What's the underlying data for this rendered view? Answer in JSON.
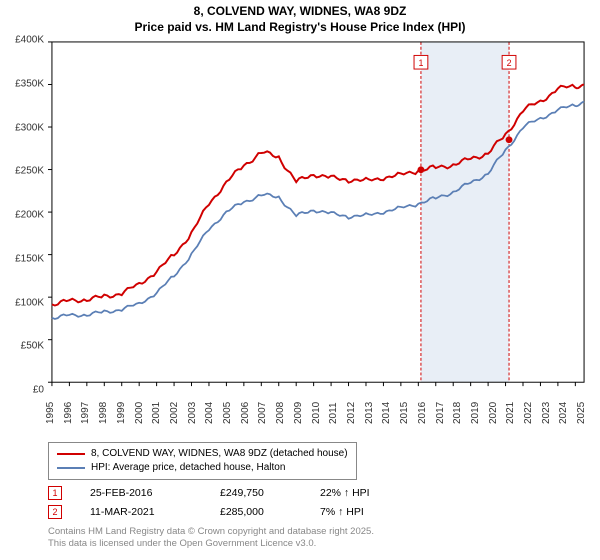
{
  "title_line1": "8, COLVEND WAY, WIDNES, WA8 9DZ",
  "title_line2": "Price paid vs. HM Land Registry's House Price Index (HPI)",
  "chart": {
    "type": "line",
    "background_color": "#ffffff",
    "border_color": "#000000",
    "xlim": [
      1995,
      2025.5
    ],
    "ylim": [
      0,
      400000
    ],
    "ytick_step": 50000,
    "yticks": [
      "£0",
      "£50K",
      "£100K",
      "£150K",
      "£200K",
      "£250K",
      "£300K",
      "£350K",
      "£400K"
    ],
    "xticks": [
      1995,
      1996,
      1997,
      1998,
      1999,
      2000,
      2001,
      2002,
      2003,
      2004,
      2005,
      2006,
      2007,
      2008,
      2009,
      2010,
      2011,
      2012,
      2013,
      2014,
      2015,
      2016,
      2017,
      2018,
      2019,
      2020,
      2021,
      2022,
      2023,
      2024,
      2025
    ],
    "highlight_band": {
      "from": 2016.15,
      "to": 2021.2,
      "fill": "#e8eef6",
      "edge": "#d00000",
      "edge_dash": "3,2"
    },
    "series": [
      {
        "name": "price_paid",
        "color": "#d00000",
        "line_width": 2,
        "x": [
          1995,
          1996,
          1997,
          1998,
          1999,
          2000,
          2001,
          2002,
          2003,
          2004,
          2005,
          2006,
          2007,
          2008,
          2009,
          2010,
          2011,
          2012,
          2013,
          2014,
          2015,
          2016,
          2017,
          2018,
          2019,
          2020,
          2021,
          2022,
          2023,
          2024,
          2025,
          2025.5
        ],
        "y": [
          92000,
          95000,
          98000,
          100000,
          105000,
          115000,
          130000,
          150000,
          175000,
          210000,
          235000,
          255000,
          270000,
          265000,
          235000,
          245000,
          240000,
          238000,
          237000,
          240000,
          244000,
          249000,
          252000,
          256000,
          262000,
          270000,
          290000,
          320000,
          330000,
          345000,
          348000,
          350000
        ]
      },
      {
        "name": "hpi",
        "color": "#5b7fb5",
        "line_width": 1.8,
        "x": [
          1995,
          1996,
          1997,
          1998,
          1999,
          2000,
          2001,
          2002,
          2003,
          2004,
          2005,
          2006,
          2007,
          2008,
          2009,
          2010,
          2011,
          2012,
          2013,
          2014,
          2015,
          2016,
          2017,
          2018,
          2019,
          2020,
          2021,
          2022,
          2023,
          2024,
          2025,
          2025.5
        ],
        "y": [
          76000,
          78000,
          80000,
          82000,
          86000,
          92000,
          105000,
          125000,
          150000,
          180000,
          200000,
          212000,
          220000,
          218000,
          195000,
          203000,
          198000,
          195000,
          196000,
          200000,
          205000,
          210000,
          216000,
          224000,
          234000,
          246000,
          272000,
          300000,
          310000,
          320000,
          326000,
          330000
        ]
      }
    ],
    "sale_markers": [
      {
        "n": "1",
        "x": 2016.15,
        "y": 249750,
        "badge_y": 375000
      },
      {
        "n": "2",
        "x": 2021.2,
        "y": 285000,
        "badge_y": 375000
      }
    ]
  },
  "legend": {
    "border_color": "#888888",
    "items": [
      {
        "color": "#d00000",
        "width": 2,
        "label": "8, COLVEND WAY, WIDNES, WA8 9DZ (detached house)"
      },
      {
        "color": "#5b7fb5",
        "width": 1.8,
        "label": "HPI: Average price, detached house, Halton"
      }
    ]
  },
  "marker_rows": [
    {
      "n": "1",
      "date": "25-FEB-2016",
      "price": "£249,750",
      "hpi": "22% ↑ HPI"
    },
    {
      "n": "2",
      "date": "11-MAR-2021",
      "price": "£285,000",
      "hpi": "7% ↑ HPI"
    }
  ],
  "attribution_line1": "Contains HM Land Registry data © Crown copyright and database right 2025.",
  "attribution_line2": "This data is licensed under the Open Government Licence v3.0."
}
